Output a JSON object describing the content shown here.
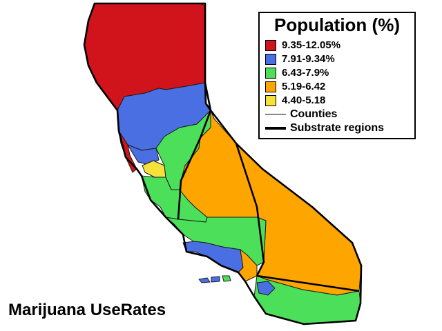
{
  "legend": {
    "title": "Population (%)",
    "bins": [
      {
        "label": "9.35-12.05%",
        "color": "#d1141c"
      },
      {
        "label": "7.91-9.34%",
        "color": "#4a6fe2"
      },
      {
        "label": "6.43-7.9%",
        "color": "#4ce05a"
      },
      {
        "label": "5.19-6.42",
        "color": "#ffa500"
      },
      {
        "label": "4.40-5.18",
        "color": "#f6e238"
      }
    ],
    "lines": [
      {
        "label": "Counties",
        "style": "thin"
      },
      {
        "label": "Substrate regions",
        "style": "thick"
      }
    ]
  },
  "caption": "Marijuana UseRates"
}
